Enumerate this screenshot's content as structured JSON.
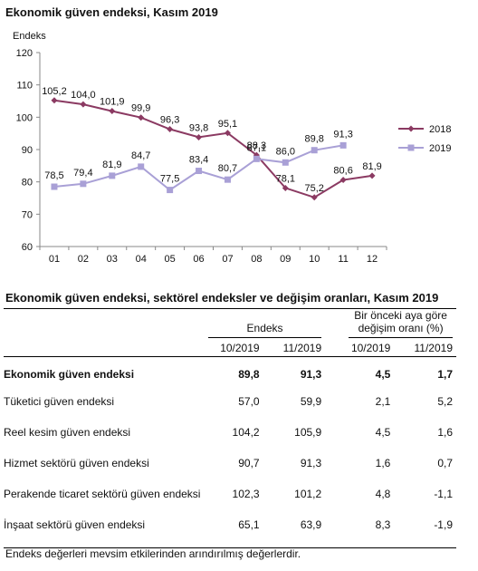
{
  "chart_title": "Ekonomik güven endeksi, Kasım 2019",
  "chart_data": {
    "type": "line",
    "ylabel": "Endeks",
    "ylim": [
      60,
      120
    ],
    "yticks": [
      60,
      70,
      80,
      90,
      100,
      110,
      120
    ],
    "categories": [
      "01",
      "02",
      "03",
      "04",
      "05",
      "06",
      "07",
      "08",
      "09",
      "10",
      "11",
      "12"
    ],
    "legend_position": "right",
    "grid": false,
    "series": [
      {
        "name": "2018",
        "color": "#8b3a62",
        "marker": "diamond",
        "values": [
          105.2,
          104.0,
          101.9,
          99.9,
          96.3,
          93.8,
          95.1,
          88.3,
          78.1,
          75.2,
          80.6,
          81.9
        ],
        "labels": [
          "105,2",
          "104,0",
          "101,9",
          "99,9",
          "96,3",
          "93,8",
          "95,1",
          "88,3",
          "78,1",
          "75,2",
          "80,6",
          "81,9"
        ]
      },
      {
        "name": "2019",
        "color": "#a9a0d6",
        "marker": "square",
        "values": [
          78.5,
          79.4,
          81.9,
          84.7,
          77.5,
          83.4,
          80.7,
          87.1,
          86.0,
          89.8,
          91.3,
          null
        ],
        "labels": [
          "78,5",
          "79,4",
          "81,9",
          "84,7",
          "77,5",
          "83,4",
          "80,7",
          "87,1",
          "86,0",
          "89,8",
          "91,3",
          null
        ]
      }
    ]
  },
  "table": {
    "title": "Ekonomik güven endeksi, sektörel endeksler ve değişim oranları, Kasım 2019",
    "group_index": "Endeks",
    "group_change_line1": "Bir önceki aya göre",
    "group_change_line2": "değişim oranı (%)",
    "columns": [
      "10/2019",
      "11/2019",
      "10/2019",
      "11/2019"
    ],
    "rows": [
      {
        "name": "Ekonomik güven endeksi",
        "bold": true,
        "values": [
          "89,8",
          "91,3",
          "4,5",
          "1,7"
        ]
      },
      {
        "name": "Tüketici güven endeksi",
        "bold": false,
        "values": [
          "57,0",
          "59,9",
          "2,1",
          "5,2"
        ]
      },
      {
        "name": "Reel kesim güven endeksi",
        "bold": false,
        "values": [
          "104,2",
          "105,9",
          "4,5",
          "1,6"
        ]
      },
      {
        "name": "Hizmet sektörü güven endeksi",
        "bold": false,
        "values": [
          "90,7",
          "91,3",
          "1,6",
          "0,7"
        ]
      },
      {
        "name": "Perakende ticaret sektörü güven endeksi",
        "bold": false,
        "values": [
          "102,3",
          "101,2",
          "4,8",
          "-1,1"
        ]
      },
      {
        "name": "İnşaat sektörü güven endeksi",
        "bold": false,
        "values": [
          "65,1",
          "63,9",
          "8,3",
          "-1,9"
        ]
      }
    ]
  },
  "note": "Endeks değerleri mevsim etkilerinden arındırılmış değerlerdir."
}
